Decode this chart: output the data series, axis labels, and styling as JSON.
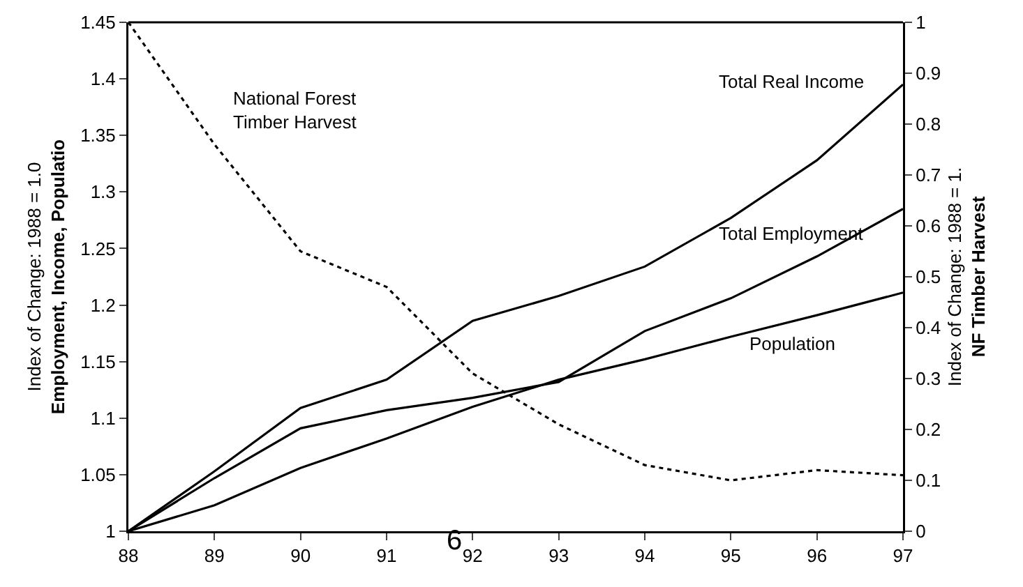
{
  "chart_data": {
    "type": "line",
    "x": [
      88,
      89,
      90,
      91,
      92,
      93,
      94,
      95,
      96,
      97
    ],
    "xlim": [
      88,
      97
    ],
    "xticks": [
      88,
      89,
      90,
      91,
      92,
      93,
      94,
      95,
      96,
      97
    ],
    "ylim": [
      1,
      1.45
    ],
    "yticks": [
      1,
      1.05,
      1.1,
      1.15,
      1.2,
      1.25,
      1.3,
      1.35,
      1.4,
      1.45
    ],
    "y2lim": [
      0,
      1
    ],
    "y2ticks": [
      0,
      0.1,
      0.2,
      0.3,
      0.4,
      0.5,
      0.6,
      0.7,
      0.8,
      0.9,
      1
    ],
    "ylabel": "Index of Change: 1988 = 1.0\nEmployment, Income, Populatio",
    "y2label": "Index of Change: 1988 = 1.\nNF Timber Harvest",
    "grid": false,
    "legend": false,
    "marker": "none",
    "series": [
      {
        "name": "Total Real Income",
        "color": "#000000",
        "line_style": "solid",
        "values": [
          1.0,
          1.053,
          1.109,
          1.134,
          1.186,
          1.208,
          1.234,
          1.277,
          1.328,
          1.395
        ]
      },
      {
        "name": "Total Employment",
        "color": "#000000",
        "line_style": "solid",
        "values": [
          1.0,
          1.047,
          1.091,
          1.107,
          1.118,
          1.132,
          1.177,
          1.206,
          1.243,
          1.285
        ]
      },
      {
        "name": "Population",
        "color": "#000000",
        "line_style": "solid",
        "values": [
          1.0,
          1.023,
          1.056,
          1.082,
          1.11,
          1.134,
          1.152,
          1.172,
          1.191,
          1.211
        ]
      },
      {
        "name": "National Forest\nTimber Harvest",
        "color": "#000000",
        "line_style": "dotted",
        "axis": "y2",
        "values": [
          1.0,
          0.76,
          0.55,
          0.48,
          0.31,
          0.21,
          0.13,
          0.1,
          0.12,
          0.11
        ]
      }
    ],
    "annotations": [
      "6"
    ]
  }
}
